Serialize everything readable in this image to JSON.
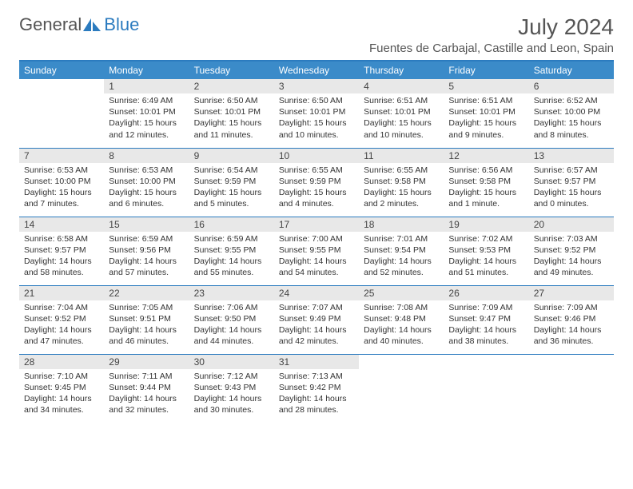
{
  "logo": {
    "text1": "General",
    "text2": "Blue"
  },
  "title": "July 2024",
  "location": "Fuentes de Carbajal, Castille and Leon, Spain",
  "colors": {
    "header_bg": "#3b8bc9",
    "accent_line": "#2b7bbf",
    "daynum_bg": "#e8e8e8",
    "text": "#333333",
    "title_text": "#555555"
  },
  "dayHeaders": [
    "Sunday",
    "Monday",
    "Tuesday",
    "Wednesday",
    "Thursday",
    "Friday",
    "Saturday"
  ],
  "weeks": [
    [
      {
        "n": "",
        "sr": "",
        "ss": "",
        "dl": ""
      },
      {
        "n": "1",
        "sr": "6:49 AM",
        "ss": "10:01 PM",
        "dl": "15 hours and 12 minutes."
      },
      {
        "n": "2",
        "sr": "6:50 AM",
        "ss": "10:01 PM",
        "dl": "15 hours and 11 minutes."
      },
      {
        "n": "3",
        "sr": "6:50 AM",
        "ss": "10:01 PM",
        "dl": "15 hours and 10 minutes."
      },
      {
        "n": "4",
        "sr": "6:51 AM",
        "ss": "10:01 PM",
        "dl": "15 hours and 10 minutes."
      },
      {
        "n": "5",
        "sr": "6:51 AM",
        "ss": "10:01 PM",
        "dl": "15 hours and 9 minutes."
      },
      {
        "n": "6",
        "sr": "6:52 AM",
        "ss": "10:00 PM",
        "dl": "15 hours and 8 minutes."
      }
    ],
    [
      {
        "n": "7",
        "sr": "6:53 AM",
        "ss": "10:00 PM",
        "dl": "15 hours and 7 minutes."
      },
      {
        "n": "8",
        "sr": "6:53 AM",
        "ss": "10:00 PM",
        "dl": "15 hours and 6 minutes."
      },
      {
        "n": "9",
        "sr": "6:54 AM",
        "ss": "9:59 PM",
        "dl": "15 hours and 5 minutes."
      },
      {
        "n": "10",
        "sr": "6:55 AM",
        "ss": "9:59 PM",
        "dl": "15 hours and 4 minutes."
      },
      {
        "n": "11",
        "sr": "6:55 AM",
        "ss": "9:58 PM",
        "dl": "15 hours and 2 minutes."
      },
      {
        "n": "12",
        "sr": "6:56 AM",
        "ss": "9:58 PM",
        "dl": "15 hours and 1 minute."
      },
      {
        "n": "13",
        "sr": "6:57 AM",
        "ss": "9:57 PM",
        "dl": "15 hours and 0 minutes."
      }
    ],
    [
      {
        "n": "14",
        "sr": "6:58 AM",
        "ss": "9:57 PM",
        "dl": "14 hours and 58 minutes."
      },
      {
        "n": "15",
        "sr": "6:59 AM",
        "ss": "9:56 PM",
        "dl": "14 hours and 57 minutes."
      },
      {
        "n": "16",
        "sr": "6:59 AM",
        "ss": "9:55 PM",
        "dl": "14 hours and 55 minutes."
      },
      {
        "n": "17",
        "sr": "7:00 AM",
        "ss": "9:55 PM",
        "dl": "14 hours and 54 minutes."
      },
      {
        "n": "18",
        "sr": "7:01 AM",
        "ss": "9:54 PM",
        "dl": "14 hours and 52 minutes."
      },
      {
        "n": "19",
        "sr": "7:02 AM",
        "ss": "9:53 PM",
        "dl": "14 hours and 51 minutes."
      },
      {
        "n": "20",
        "sr": "7:03 AM",
        "ss": "9:52 PM",
        "dl": "14 hours and 49 minutes."
      }
    ],
    [
      {
        "n": "21",
        "sr": "7:04 AM",
        "ss": "9:52 PM",
        "dl": "14 hours and 47 minutes."
      },
      {
        "n": "22",
        "sr": "7:05 AM",
        "ss": "9:51 PM",
        "dl": "14 hours and 46 minutes."
      },
      {
        "n": "23",
        "sr": "7:06 AM",
        "ss": "9:50 PM",
        "dl": "14 hours and 44 minutes."
      },
      {
        "n": "24",
        "sr": "7:07 AM",
        "ss": "9:49 PM",
        "dl": "14 hours and 42 minutes."
      },
      {
        "n": "25",
        "sr": "7:08 AM",
        "ss": "9:48 PM",
        "dl": "14 hours and 40 minutes."
      },
      {
        "n": "26",
        "sr": "7:09 AM",
        "ss": "9:47 PM",
        "dl": "14 hours and 38 minutes."
      },
      {
        "n": "27",
        "sr": "7:09 AM",
        "ss": "9:46 PM",
        "dl": "14 hours and 36 minutes."
      }
    ],
    [
      {
        "n": "28",
        "sr": "7:10 AM",
        "ss": "9:45 PM",
        "dl": "14 hours and 34 minutes."
      },
      {
        "n": "29",
        "sr": "7:11 AM",
        "ss": "9:44 PM",
        "dl": "14 hours and 32 minutes."
      },
      {
        "n": "30",
        "sr": "7:12 AM",
        "ss": "9:43 PM",
        "dl": "14 hours and 30 minutes."
      },
      {
        "n": "31",
        "sr": "7:13 AM",
        "ss": "9:42 PM",
        "dl": "14 hours and 28 minutes."
      },
      {
        "n": "",
        "sr": "",
        "ss": "",
        "dl": ""
      },
      {
        "n": "",
        "sr": "",
        "ss": "",
        "dl": ""
      },
      {
        "n": "",
        "sr": "",
        "ss": "",
        "dl": ""
      }
    ]
  ],
  "labels": {
    "sunrise": "Sunrise:",
    "sunset": "Sunset:",
    "daylight": "Daylight:"
  }
}
